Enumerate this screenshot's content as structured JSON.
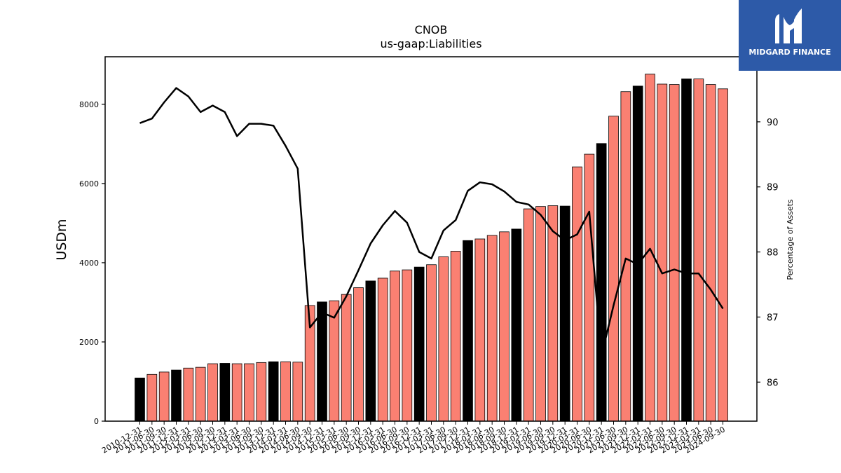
{
  "brand": {
    "name": "MIDGARD FINANCE",
    "logo_icon": "midgard-m-logo-icon",
    "color": "#2d5aa8"
  },
  "chart_data": {
    "type": "bar",
    "title": "CNOB",
    "subtitle": "us-gaap:Liabilities",
    "ylabel": "USDm",
    "y2label": "Percentage of Assets",
    "ylim": [
      0,
      9200
    ],
    "y2lim": [
      85.4,
      91.0
    ],
    "yticks": [
      0,
      2000,
      4000,
      6000,
      8000
    ],
    "y2ticks": [
      86,
      87,
      88,
      89,
      90
    ],
    "bar_color_annual": "#000000",
    "bar_color_quarterly": "#fa8072",
    "line_color": "#000000",
    "categories": [
      "2010-12-31",
      "2011-06-30",
      "2011-09-30",
      "2011-12-31",
      "2012-03-31",
      "2012-06-30",
      "2012-09-30",
      "2012-12-31",
      "2013-03-31",
      "2013-06-30",
      "2013-09-30",
      "2013-12-31",
      "2014-03-31",
      "2014-06-30",
      "2014-09-30",
      "2014-12-31",
      "2015-03-31",
      "2015-06-30",
      "2015-09-30",
      "2015-12-31",
      "2016-03-31",
      "2016-06-30",
      "2016-09-30",
      "2016-12-31",
      "2017-03-31",
      "2017-06-30",
      "2017-09-30",
      "2017-12-31",
      "2018-03-31",
      "2018-06-30",
      "2018-09-30",
      "2018-12-31",
      "2019-03-31",
      "2019-06-30",
      "2019-09-30",
      "2019-12-31",
      "2020-03-31",
      "2020-06-30",
      "2020-12-31",
      "2021-06-30",
      "2021-09-30",
      "2021-12-31",
      "2022-03-31",
      "2022-06-30",
      "2022-09-30",
      "2022-12-31",
      "2023-03-31",
      "2023-06-30",
      "2024-09-30"
    ],
    "annual": [
      true,
      false,
      false,
      true,
      false,
      false,
      false,
      true,
      false,
      false,
      false,
      true,
      false,
      false,
      false,
      true,
      false,
      false,
      false,
      true,
      false,
      false,
      false,
      true,
      false,
      false,
      false,
      true,
      false,
      false,
      false,
      true,
      false,
      false,
      false,
      true,
      false,
      false,
      true,
      false,
      false,
      true,
      false,
      false,
      false,
      true,
      false,
      false,
      false
    ],
    "values": [
      1090,
      1180,
      1240,
      1290,
      1340,
      1360,
      1450,
      1460,
      1450,
      1450,
      1480,
      1500,
      1500,
      1490,
      2920,
      3010,
      3040,
      3200,
      3370,
      3540,
      3610,
      3790,
      3820,
      3890,
      3950,
      4150,
      4290,
      4560,
      4600,
      4690,
      4780,
      4850,
      5360,
      5420,
      5440,
      5430,
      6420,
      6740,
      7010,
      7700,
      8320,
      8460,
      8760,
      8510,
      8500,
      8640,
      8640,
      8500,
      8390
    ],
    "pct_of_assets": [
      89.98,
      90.05,
      90.3,
      90.52,
      90.39,
      90.15,
      90.25,
      90.15,
      89.78,
      89.97,
      89.97,
      89.94,
      89.63,
      89.28,
      86.84,
      87.07,
      86.99,
      87.32,
      87.72,
      88.13,
      88.41,
      88.63,
      88.45,
      88.0,
      87.9,
      88.33,
      88.49,
      88.94,
      89.07,
      89.04,
      88.93,
      88.77,
      88.73,
      88.57,
      88.32,
      88.18,
      88.27,
      88.62,
      86.4,
      87.18,
      87.9,
      87.81,
      88.05,
      87.67,
      87.73,
      87.67,
      87.67,
      87.42,
      87.13
    ]
  }
}
